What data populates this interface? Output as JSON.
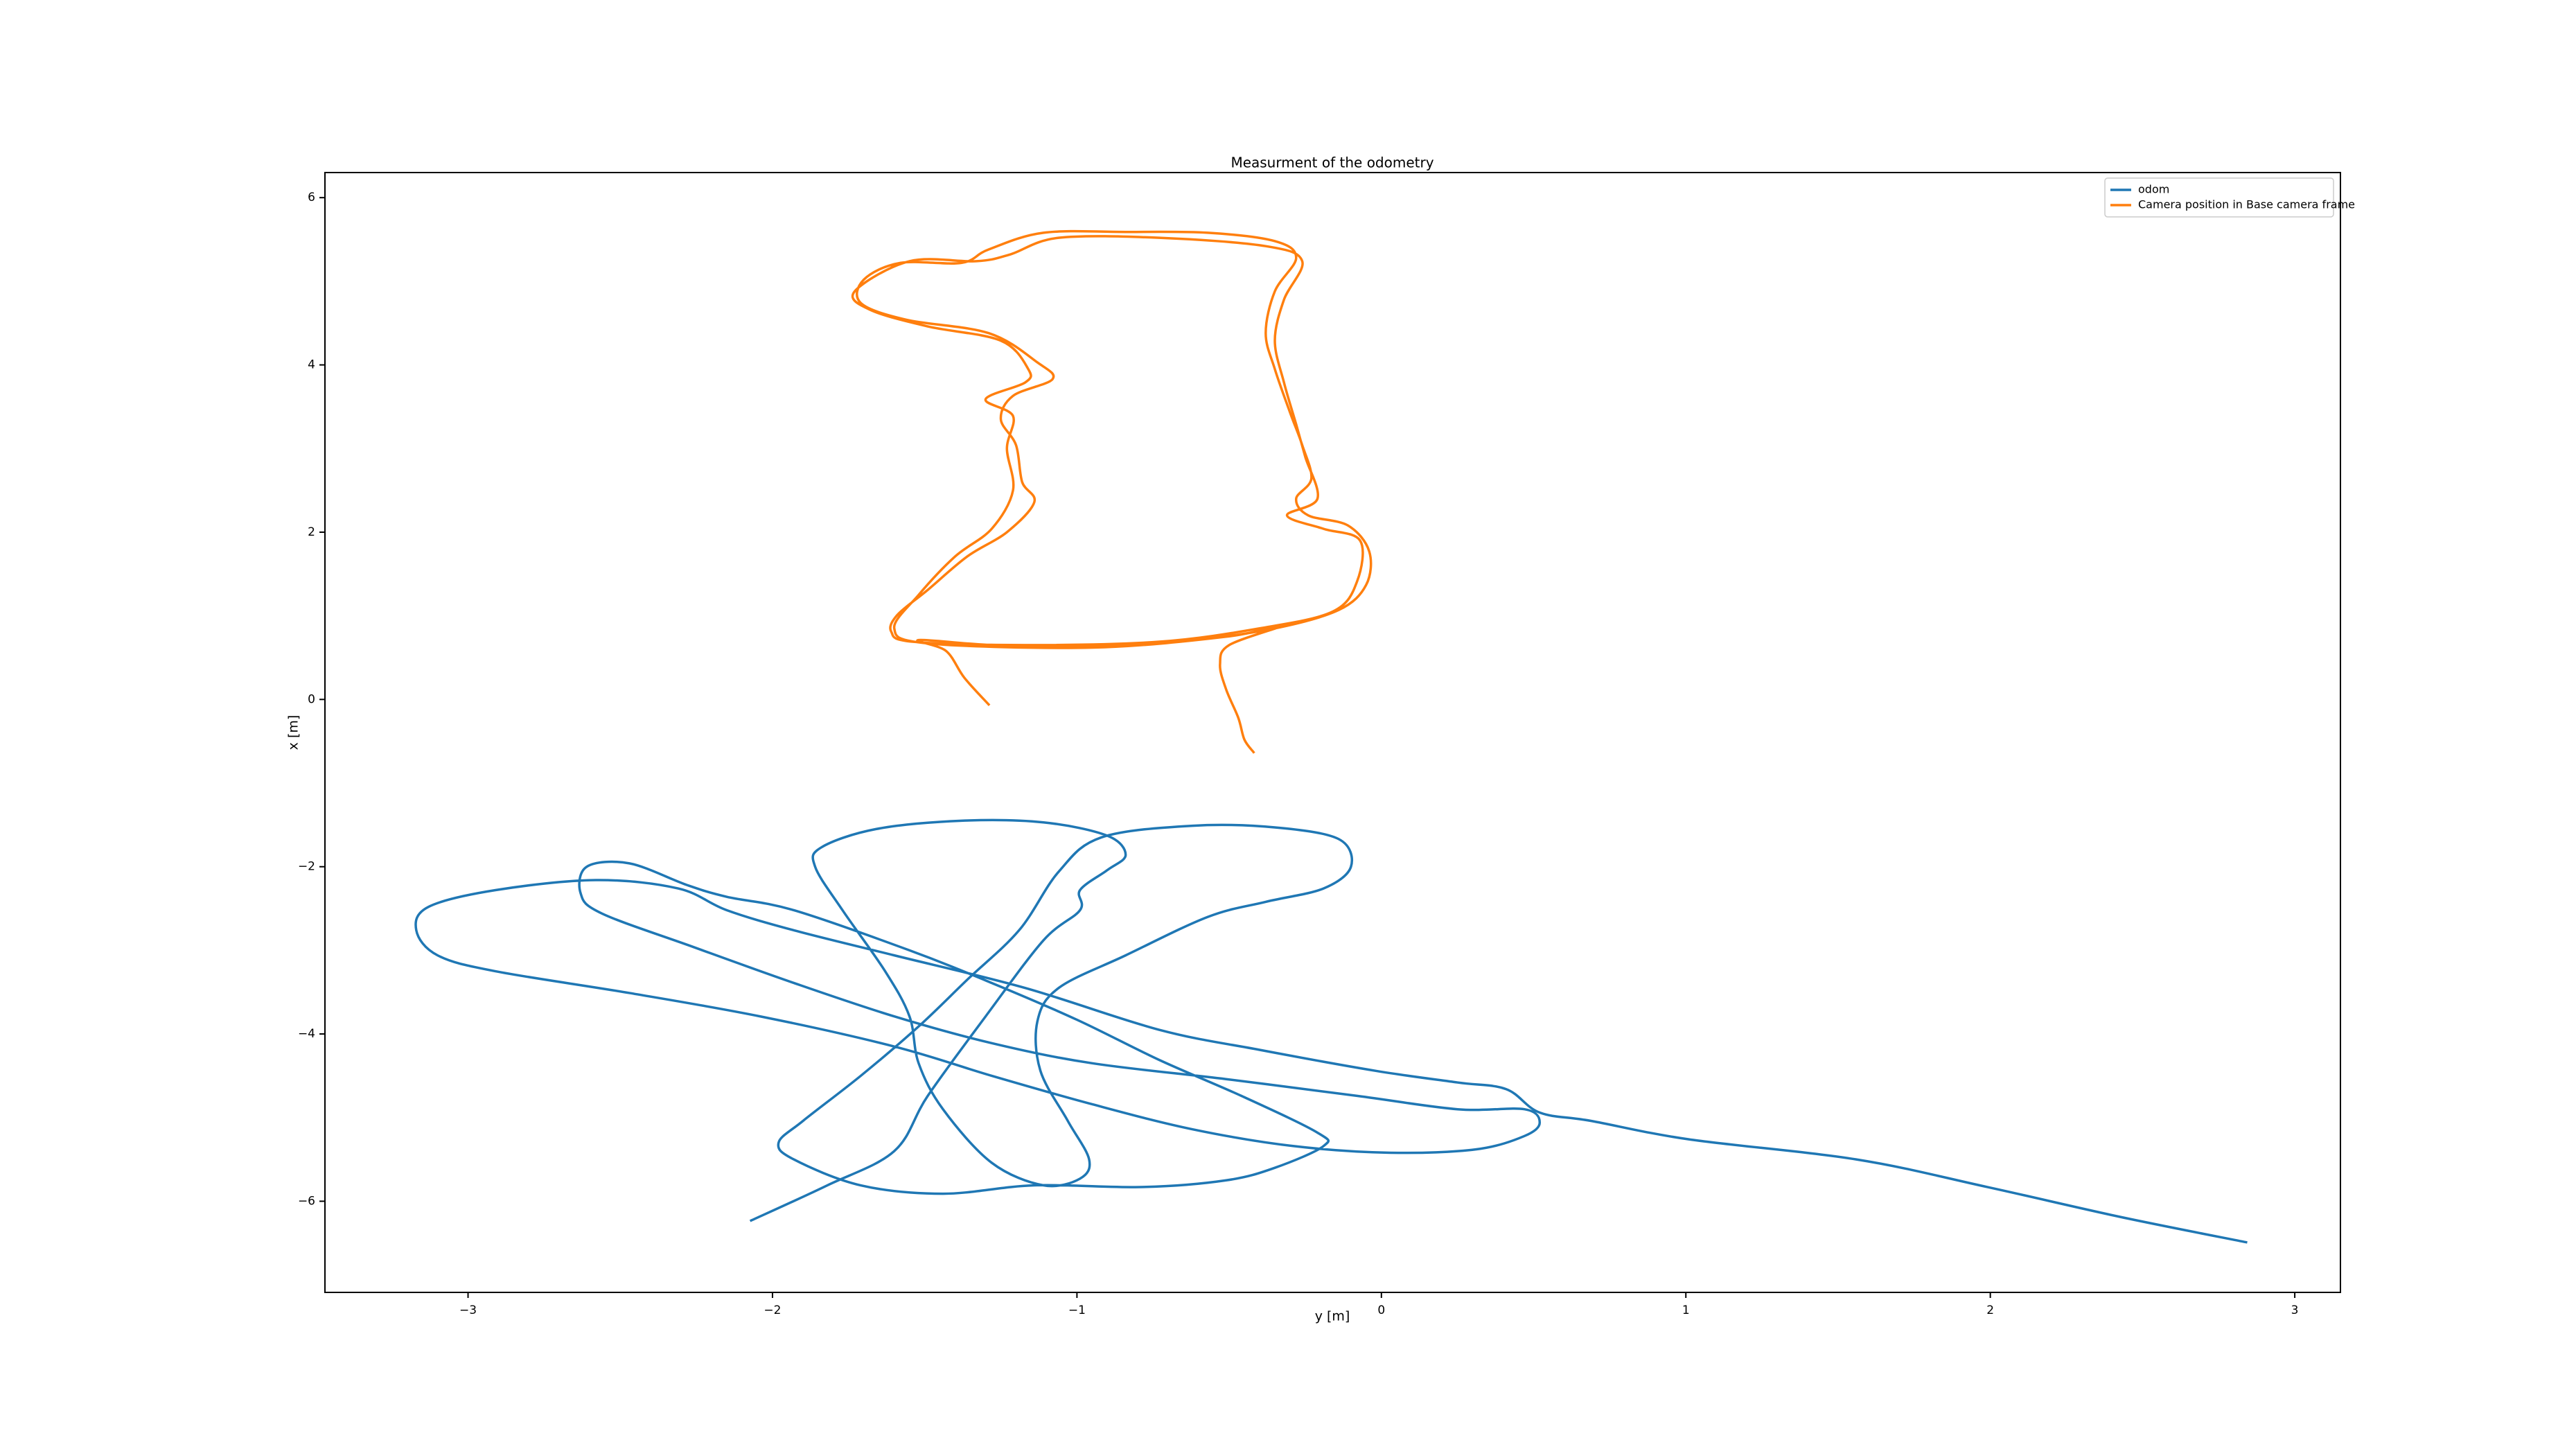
{
  "chart_data": {
    "type": "line",
    "title": "Measurment of the odometry",
    "x_label": "y [m]",
    "y_label": "x [m]",
    "xlim": [
      -3.47,
      3.15
    ],
    "ylim": [
      -7.09,
      6.3
    ],
    "xticks": [
      {
        "value": -3,
        "label": "−3"
      },
      {
        "value": -2,
        "label": "−2"
      },
      {
        "value": -1,
        "label": "−1"
      },
      0,
      1,
      2,
      3
    ],
    "yticks": [
      {
        "value": -6,
        "label": "−6"
      },
      {
        "value": -4,
        "label": "−4"
      },
      {
        "value": -2,
        "label": "−2"
      },
      0,
      2,
      4,
      6
    ],
    "grid": false,
    "legend": "upper right",
    "series": [
      {
        "name": "odom",
        "color": "#1f77b4",
        "x": [
          -2.07,
          -1.82,
          -1.6,
          -1.49,
          -1.3,
          -1.11,
          -0.99,
          -0.99,
          -0.9,
          -0.84,
          -0.9,
          -1.11,
          -1.38,
          -1.66,
          -1.84,
          -1.86,
          -1.77,
          -1.63,
          -1.55,
          -1.52,
          -1.44,
          -1.28,
          -1.11,
          -0.99,
          -0.96,
          -1.03,
          -1.12,
          -1.13,
          -1.06,
          -0.84,
          -0.57,
          -0.38,
          -0.19,
          -0.1,
          -0.14,
          -0.35,
          -0.62,
          -0.92,
          -1.06,
          -1.19,
          -1.36,
          -1.52,
          -1.71,
          -1.9,
          -1.98,
          -1.93,
          -1.71,
          -1.44,
          -1.14,
          -0.78,
          -0.51,
          -0.35,
          -0.19,
          -0.21,
          -0.46,
          -0.73,
          -1.0,
          -1.28,
          -1.55,
          -1.93,
          -2.15,
          -2.28,
          -2.47,
          -2.61,
          -2.63,
          -2.56,
          -2.26,
          -1.93,
          -1.6,
          -1.28,
          -0.95,
          -0.51,
          -0.08,
          0.25,
          0.47,
          0.52,
          0.47,
          0.31,
          0.03,
          -0.29,
          -0.62,
          -0.95,
          -1.28,
          -1.6,
          -2.04,
          -2.47,
          -2.91,
          -3.1,
          -3.17,
          -3.13,
          -2.91,
          -2.58,
          -2.31,
          -2.15,
          -1.93,
          -1.6,
          -1.17,
          -0.73,
          -0.4,
          -0.02,
          0.25,
          0.41,
          0.52,
          0.69,
          1.01,
          1.56,
          1.99,
          2.43,
          2.84
        ],
        "values": [
          -6.23,
          -5.81,
          -5.4,
          -4.74,
          -3.79,
          -2.88,
          -2.52,
          -2.28,
          -2.04,
          -1.86,
          -1.63,
          -1.47,
          -1.45,
          -1.55,
          -1.77,
          -2.0,
          -2.52,
          -3.25,
          -3.79,
          -4.35,
          -4.9,
          -5.54,
          -5.81,
          -5.73,
          -5.5,
          -5.04,
          -4.44,
          -3.85,
          -3.45,
          -3.06,
          -2.6,
          -2.42,
          -2.26,
          -2.0,
          -1.67,
          -1.53,
          -1.51,
          -1.65,
          -2.06,
          -2.76,
          -3.35,
          -3.91,
          -4.5,
          -5.04,
          -5.3,
          -5.5,
          -5.81,
          -5.91,
          -5.81,
          -5.83,
          -5.75,
          -5.6,
          -5.34,
          -5.18,
          -4.74,
          -4.31,
          -3.83,
          -3.39,
          -3.0,
          -2.52,
          -2.36,
          -2.22,
          -1.96,
          -2.0,
          -2.32,
          -2.56,
          -2.96,
          -3.39,
          -3.79,
          -4.11,
          -4.35,
          -4.54,
          -4.74,
          -4.9,
          -4.9,
          -5.06,
          -5.22,
          -5.38,
          -5.42,
          -5.34,
          -5.14,
          -4.84,
          -4.5,
          -4.15,
          -3.79,
          -3.51,
          -3.25,
          -3.06,
          -2.76,
          -2.48,
          -2.28,
          -2.16,
          -2.26,
          -2.52,
          -2.76,
          -3.06,
          -3.45,
          -3.95,
          -4.19,
          -4.44,
          -4.58,
          -4.66,
          -4.94,
          -5.04,
          -5.26,
          -5.5,
          -5.83,
          -6.19,
          -6.49
        ]
      },
      {
        "name": "Camera position in Base camera frame",
        "color": "#ff7f0e",
        "x": [
          -1.29,
          -1.37,
          -1.43,
          -1.52,
          -1.28,
          -0.95,
          -0.62,
          -0.35,
          -0.14,
          -0.05,
          -0.04,
          -0.11,
          -0.24,
          -0.28,
          -0.23,
          -0.26,
          -0.3,
          -0.35,
          -0.38,
          -0.35,
          -0.28,
          -0.35,
          -0.57,
          -0.84,
          -1.11,
          -1.29,
          -1.38,
          -1.58,
          -1.7,
          -1.71,
          -1.56,
          -1.29,
          -1.13,
          -1.08,
          -1.21,
          -1.25,
          -1.2,
          -1.18,
          -1.14,
          -1.23,
          -1.36,
          -1.49,
          -1.59,
          -1.61,
          -1.54,
          -1.17,
          -0.73,
          -0.4,
          -0.16,
          -0.08,
          -0.07,
          -0.19,
          -0.31,
          -0.21,
          -0.25,
          -0.28,
          -0.32,
          -0.35,
          -0.32,
          -0.26,
          -0.38,
          -0.73,
          -1.06,
          -1.22,
          -1.33,
          -1.55,
          -1.73,
          -1.68,
          -1.49,
          -1.25,
          -1.16,
          -1.17,
          -1.3,
          -1.21,
          -1.23,
          -1.21,
          -1.28,
          -1.4,
          -1.52,
          -1.6,
          -1.49,
          -0.95,
          -0.51,
          -0.32,
          -0.5,
          -0.53,
          -0.51,
          -0.47,
          -0.45,
          -0.42
        ],
        "values": [
          -0.06,
          0.26,
          0.58,
          0.71,
          0.65,
          0.63,
          0.71,
          0.85,
          1.07,
          1.37,
          1.77,
          2.08,
          2.2,
          2.4,
          2.64,
          3.04,
          3.43,
          3.95,
          4.38,
          4.88,
          5.28,
          5.48,
          5.58,
          5.59,
          5.58,
          5.38,
          5.22,
          5.22,
          5.02,
          4.74,
          4.54,
          4.38,
          4.03,
          3.83,
          3.63,
          3.35,
          3.04,
          2.6,
          2.36,
          2.0,
          1.71,
          1.31,
          1.01,
          0.81,
          0.69,
          0.65,
          0.69,
          0.85,
          1.05,
          1.41,
          1.9,
          2.04,
          2.2,
          2.4,
          2.9,
          3.29,
          3.79,
          4.29,
          4.78,
          5.24,
          5.42,
          5.52,
          5.52,
          5.32,
          5.24,
          5.24,
          4.88,
          4.66,
          4.46,
          4.29,
          3.95,
          3.79,
          3.59,
          3.39,
          3.0,
          2.5,
          2.04,
          1.71,
          1.25,
          0.85,
          0.67,
          0.62,
          0.75,
          0.89,
          0.65,
          0.42,
          0.12,
          -0.22,
          -0.48,
          -0.63
        ]
      }
    ]
  }
}
